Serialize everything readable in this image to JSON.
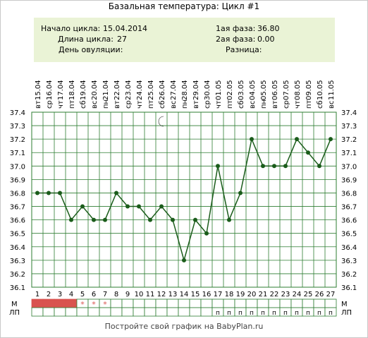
{
  "title": "Базальная температура: Цикл #1",
  "info": {
    "cycle_start_label": "Начало цикла:",
    "cycle_start_value": "15.04.2014",
    "cycle_length_label": "Длина цикла:",
    "cycle_length_value": "27",
    "ovulation_day_label": "День овуляции:",
    "ovulation_day_value": "",
    "phase1_label": "1ая фаза:",
    "phase1_value": "36.80",
    "phase2_label": "2ая фаза:",
    "phase2_value": "0.00",
    "difference_label": "Разница:",
    "difference_value": ""
  },
  "footer": "Постройте свой график на BabyPlan.ru",
  "colors": {
    "line": "#1a5c1a",
    "grid": "#2e7d32",
    "period": "#d9534f",
    "info_bg": "#eaf3d6"
  },
  "row_labels": {
    "m": "М",
    "lp": "ЛП"
  },
  "moon_icon_day": 12,
  "chart_data": {
    "type": "line",
    "days": [
      1,
      2,
      3,
      4,
      5,
      6,
      7,
      8,
      9,
      10,
      11,
      12,
      13,
      14,
      15,
      16,
      17,
      18,
      19,
      20,
      21,
      22,
      23,
      24,
      25,
      26,
      27
    ],
    "weekdays": [
      "вт",
      "ср",
      "чт",
      "пт",
      "сб",
      "вс",
      "пн",
      "вт",
      "ср",
      "чт",
      "пт",
      "сб",
      "вс",
      "пн",
      "вт",
      "ср",
      "чт",
      "пт",
      "сб",
      "вс",
      "пн",
      "вт",
      "ср",
      "чт",
      "пт",
      "сб",
      "вс"
    ],
    "dates": [
      "15.04",
      "16.04",
      "17.04",
      "18.04",
      "19.04",
      "20.04",
      "21.04",
      "22.04",
      "23.04",
      "24.04",
      "25.04",
      "26.04",
      "27.04",
      "28.04",
      "29.04",
      "30.04",
      "01.05",
      "02.05",
      "03.05",
      "04.05",
      "05.05",
      "06.05",
      "07.05",
      "08.05",
      "09.05",
      "10.05",
      "11.05"
    ],
    "temperatures": [
      36.8,
      36.8,
      36.8,
      36.6,
      36.7,
      36.6,
      36.6,
      36.8,
      36.7,
      36.7,
      36.6,
      36.7,
      36.6,
      36.3,
      36.6,
      36.5,
      37.0,
      36.6,
      36.8,
      37.2,
      37.0,
      37.0,
      37.0,
      37.2,
      37.1,
      37.0,
      37.2
    ],
    "y_ticks": [
      "37.4",
      "37.3",
      "37.2",
      "37.1",
      "37.0",
      "36.9",
      "36.8",
      "36.7",
      "36.6",
      "36.5",
      "36.4",
      "36.3",
      "36.2",
      "36.1"
    ],
    "ylim": [
      36.1,
      37.4
    ],
    "menstruation": [
      "full",
      "full",
      "full",
      "full",
      "star",
      "star",
      "star",
      "",
      "",
      "",
      "",
      "",
      "",
      "",
      "",
      "",
      "",
      "",
      "",
      "",
      "",
      "",
      "",
      "",
      "",
      "",
      ""
    ],
    "lp": [
      "",
      "",
      "",
      "",
      "",
      "",
      "",
      "",
      "",
      "",
      "",
      "",
      "",
      "",
      "",
      "",
      "п",
      "п",
      "п",
      "п",
      "п",
      "п",
      "п",
      "п",
      "п",
      "п",
      "п"
    ]
  }
}
